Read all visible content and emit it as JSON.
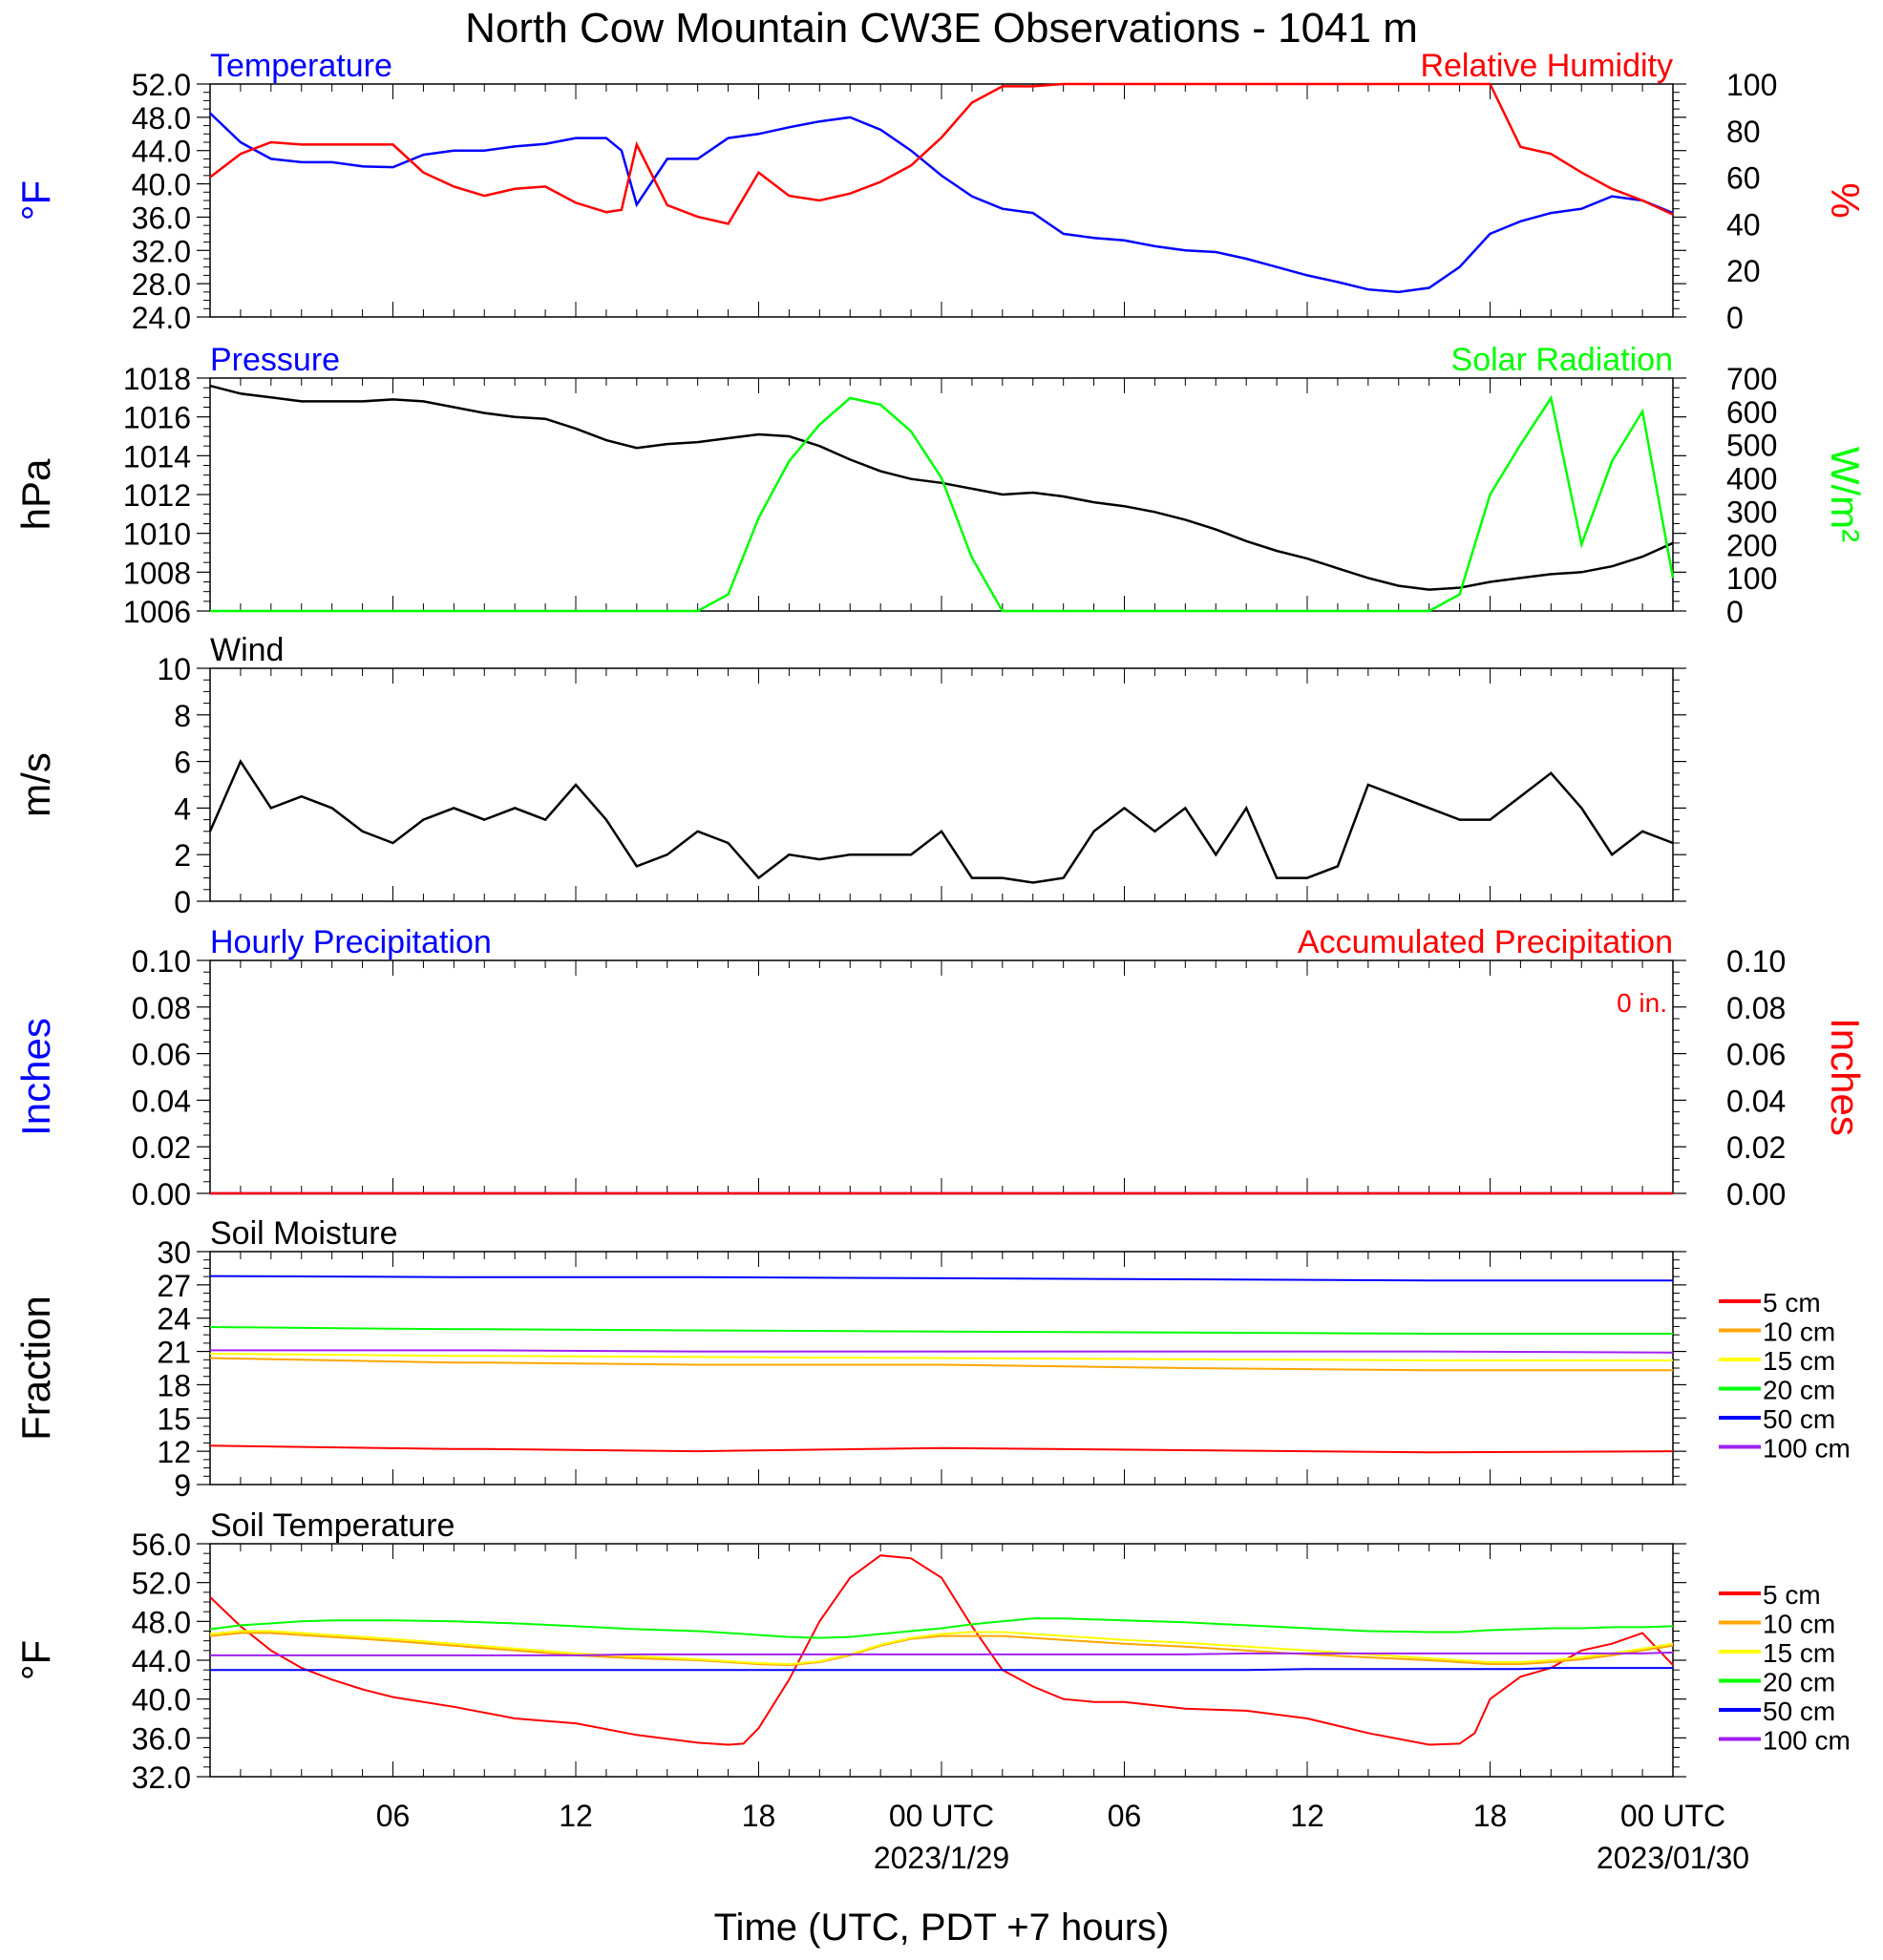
{
  "title": "North Cow Mountain CW3E Observations - 1041 m",
  "xlabel": "Time (UTC, PDT +7 hours)",
  "x_ticks": [
    "06",
    "12",
    "18",
    "00 UTC",
    "06",
    "12",
    "18",
    "00 UTC"
  ],
  "x_dates": [
    "2023/1/29",
    "2023/01/30"
  ],
  "chart_data": [
    {
      "type": "line",
      "title_left": "Temperature",
      "title_right": "Relative Humidity",
      "ylabel_left": "°F",
      "ylabel_right": "%",
      "ylim_left": [
        24,
        52
      ],
      "ylim_right": [
        0,
        100
      ],
      "yticks_left": [
        "52.0",
        "48.0",
        "44.0",
        "40.0",
        "36.0",
        "32.0",
        "28.0",
        "24.0"
      ],
      "yticks_right": [
        "100",
        "80",
        "60",
        "40",
        "20",
        "0"
      ],
      "x_hours": [
        0,
        1,
        2,
        3,
        4,
        5,
        6,
        7,
        8,
        9,
        10,
        11,
        12,
        13,
        13.5,
        14,
        15,
        16,
        17,
        18,
        19,
        20,
        21,
        22,
        23,
        24,
        25,
        26,
        27,
        28,
        29,
        30,
        31,
        32,
        33,
        34,
        35,
        36,
        37,
        38,
        39,
        40,
        41,
        42,
        43,
        44,
        45,
        46,
        47,
        48
      ],
      "series": [
        {
          "name": "Temperature",
          "color": "#0000ff",
          "axis": "left",
          "values": [
            48.5,
            45,
            43,
            42.6,
            42.6,
            42.1,
            42,
            43.5,
            44,
            44,
            44.5,
            44.8,
            45.5,
            45.5,
            44,
            37.5,
            43,
            43,
            45.5,
            46,
            46.8,
            47.5,
            48,
            46.5,
            44,
            41,
            38.5,
            37,
            36.5,
            34,
            33.5,
            33.2,
            32.5,
            32,
            31.8,
            31,
            30,
            29,
            28.2,
            27.3,
            27,
            27.5,
            30,
            34,
            35.5,
            36.5,
            37,
            38.5,
            38,
            36.5
          ]
        },
        {
          "name": "Relative Humidity",
          "color": "#ff0000",
          "axis": "right",
          "values": [
            60,
            70,
            75,
            74,
            74,
            74,
            74,
            62,
            56,
            52,
            55,
            56,
            49,
            45,
            46,
            74,
            48,
            43,
            40,
            62,
            52,
            50,
            53,
            58,
            65,
            77,
            92,
            99,
            99,
            100,
            100,
            100,
            100,
            100,
            100,
            100,
            100,
            100,
            100,
            100,
            100,
            100,
            100,
            100,
            73,
            70,
            62,
            55,
            50,
            44
          ]
        }
      ]
    },
    {
      "type": "line",
      "title_left": "Pressure",
      "title_right": "Solar Radiation",
      "ylabel_left": "hPa",
      "ylabel_right": "W/m²",
      "ylim_left": [
        1006,
        1018
      ],
      "ylim_right": [
        0,
        700
      ],
      "yticks_left": [
        "1018",
        "1016",
        "1014",
        "1012",
        "1010",
        "1008",
        "1006"
      ],
      "yticks_right": [
        "700",
        "600",
        "500",
        "400",
        "300",
        "200",
        "100",
        "0"
      ],
      "x_hours": [
        0,
        1,
        2,
        3,
        4,
        5,
        6,
        7,
        8,
        9,
        10,
        11,
        12,
        13,
        14,
        15,
        16,
        17,
        18,
        19,
        20,
        21,
        22,
        23,
        24,
        25,
        26,
        27,
        28,
        29,
        30,
        31,
        32,
        33,
        34,
        35,
        36,
        37,
        38,
        39,
        40,
        41,
        42,
        43,
        44,
        45,
        46,
        47,
        48
      ],
      "series": [
        {
          "name": "Pressure",
          "color": "#000000",
          "axis": "left",
          "values": [
            1017.6,
            1017.2,
            1017,
            1016.8,
            1016.8,
            1016.8,
            1016.9,
            1016.8,
            1016.5,
            1016.2,
            1016,
            1015.9,
            1015.4,
            1014.8,
            1014.4,
            1014.6,
            1014.7,
            1014.9,
            1015.1,
            1015,
            1014.5,
            1013.8,
            1013.2,
            1012.8,
            1012.6,
            1012.3,
            1012,
            1012.1,
            1011.9,
            1011.6,
            1011.4,
            1011.1,
            1010.7,
            1010.2,
            1009.6,
            1009.1,
            1008.7,
            1008.2,
            1007.7,
            1007.3,
            1007.1,
            1007.2,
            1007.5,
            1007.7,
            1007.9,
            1008,
            1008.3,
            1008.8,
            1009.5
          ]
        },
        {
          "name": "Solar Radiation",
          "color": "#00ff00",
          "axis": "right",
          "values": [
            0,
            0,
            0,
            0,
            0,
            0,
            0,
            0,
            0,
            0,
            0,
            0,
            0,
            0,
            0,
            0,
            0,
            50,
            280,
            450,
            560,
            640,
            620,
            540,
            400,
            160,
            0,
            0,
            0,
            0,
            0,
            0,
            0,
            0,
            0,
            0,
            0,
            0,
            0,
            0,
            0,
            50,
            350,
            500,
            640,
            200,
            450,
            600,
            100
          ]
        }
      ]
    },
    {
      "type": "line",
      "title_left": "Wind",
      "ylabel_left": "m/s",
      "ylim_left": [
        0,
        10
      ],
      "yticks_left": [
        "10",
        "8",
        "6",
        "4",
        "2",
        "0"
      ],
      "x_hours": [
        0,
        1,
        2,
        3,
        4,
        5,
        6,
        7,
        8,
        9,
        10,
        11,
        12,
        13,
        14,
        15,
        16,
        17,
        18,
        19,
        20,
        21,
        22,
        23,
        24,
        25,
        26,
        27,
        28,
        29,
        30,
        31,
        32,
        33,
        34,
        35,
        36,
        37,
        38,
        39,
        40,
        41,
        42,
        43,
        44,
        45,
        46,
        47,
        48
      ],
      "series": [
        {
          "name": "Wind",
          "color": "#000000",
          "axis": "left",
          "values": [
            3,
            6,
            4,
            4.5,
            4,
            3,
            2.5,
            3.5,
            4,
            3.5,
            4,
            3.5,
            5,
            3.5,
            1.5,
            2,
            3,
            2.5,
            1,
            2,
            1.8,
            2,
            2,
            2,
            3,
            1,
            1,
            0.8,
            1,
            3,
            4,
            3,
            4,
            2,
            4,
            1,
            1,
            1.5,
            5,
            4.5,
            4,
            3.5,
            3.5,
            4.5,
            5.5,
            4,
            2,
            3,
            2.5
          ]
        }
      ]
    },
    {
      "type": "line",
      "title_left": "Hourly Precipitation",
      "title_right": "Accumulated Precipitation",
      "annotation": "0 in.",
      "ylabel_left": "Inches",
      "ylabel_right": "Inches",
      "ylim_left": [
        0,
        0.1
      ],
      "ylim_right": [
        0,
        0.1
      ],
      "yticks_left": [
        "0.10",
        "0.08",
        "0.06",
        "0.04",
        "0.02",
        "0.00"
      ],
      "yticks_right": [
        "0.10",
        "0.08",
        "0.06",
        "0.04",
        "0.02",
        "0.00"
      ],
      "x_hours": [
        0,
        48
      ],
      "series": [
        {
          "name": "Hourly Precipitation",
          "color": "#0000ff",
          "axis": "left",
          "values": [
            0,
            0
          ]
        },
        {
          "name": "Accumulated Precipitation",
          "color": "#ff0000",
          "axis": "right",
          "values": [
            0,
            0
          ]
        }
      ]
    },
    {
      "type": "line",
      "title_left": "Soil Moisture",
      "ylabel_left": "Fraction",
      "ylim_left": [
        9,
        30
      ],
      "yticks_left": [
        "30",
        "27",
        "24",
        "21",
        "18",
        "15",
        "12",
        "9"
      ],
      "x_hours": [
        0,
        8,
        9,
        16,
        24,
        32,
        40,
        48
      ],
      "series": [
        {
          "name": "5 cm",
          "color": "#ff0000",
          "values": [
            12.5,
            12.2,
            12.2,
            12,
            12.3,
            12.1,
            11.9,
            12
          ]
        },
        {
          "name": "10 cm",
          "color": "#ffa500",
          "values": [
            20.4,
            20,
            20,
            19.8,
            19.8,
            19.5,
            19.3,
            19.3
          ]
        },
        {
          "name": "15 cm",
          "color": "#ffff00",
          "values": [
            20.8,
            20.6,
            20.6,
            20.5,
            20.4,
            20.3,
            20.2,
            20.2
          ]
        },
        {
          "name": "20 cm",
          "color": "#00ff00",
          "values": [
            23.2,
            23,
            23,
            22.9,
            22.8,
            22.7,
            22.6,
            22.6
          ]
        },
        {
          "name": "50 cm",
          "color": "#0000ff",
          "values": [
            27.8,
            27.7,
            27.7,
            27.7,
            27.6,
            27.5,
            27.4,
            27.4
          ]
        },
        {
          "name": "100 cm",
          "color": "#a020f0",
          "values": [
            21.1,
            21.1,
            21.1,
            21,
            21,
            21,
            21,
            20.9
          ]
        }
      ]
    },
    {
      "type": "line",
      "title_left": "Soil Temperature",
      "ylabel_left": "°F",
      "ylim_left": [
        32,
        56
      ],
      "yticks_left": [
        "56.0",
        "52.0",
        "48.0",
        "44.0",
        "40.0",
        "36.0",
        "32.0"
      ],
      "x_hours": [
        0,
        1,
        2,
        3,
        4,
        5,
        6,
        8,
        10,
        12,
        14,
        16,
        17,
        17.5,
        18,
        19,
        20,
        21,
        22,
        23,
        24,
        25,
        26,
        27,
        28,
        29,
        30,
        32,
        34,
        36,
        38,
        40,
        41,
        41.5,
        42,
        43,
        44,
        45,
        46,
        47,
        48
      ],
      "series": [
        {
          "name": "5 cm",
          "color": "#ff0000",
          "values": [
            50.5,
            47.5,
            45,
            43.2,
            42,
            41,
            40.2,
            39.2,
            38,
            37.5,
            36.3,
            35.5,
            35.3,
            35.4,
            37,
            42,
            48,
            52.5,
            54.8,
            54.5,
            52.5,
            47.5,
            43,
            41.3,
            40,
            39.7,
            39.7,
            39,
            38.8,
            38,
            36.5,
            35.3,
            35.4,
            36.5,
            40,
            42.3,
            43.2,
            45,
            45.7,
            46.8,
            43.5
          ]
        },
        {
          "name": "10 cm",
          "color": "#ffa500",
          "values": [
            46.5,
            46.8,
            46.8,
            46.6,
            46.4,
            46.2,
            46,
            45.5,
            45,
            44.5,
            44.2,
            44,
            43.8,
            43.7,
            43.6,
            43.5,
            43.8,
            44.5,
            45.5,
            46.2,
            46.5,
            46.5,
            46.5,
            46.3,
            46.1,
            45.9,
            45.7,
            45.4,
            45,
            44.6,
            44.3,
            44,
            43.8,
            43.7,
            43.6,
            43.6,
            43.8,
            44.1,
            44.5,
            45,
            45.5
          ]
        },
        {
          "name": "15 cm",
          "color": "#ffff00",
          "values": [
            46.7,
            47,
            47,
            46.8,
            46.6,
            46.4,
            46.2,
            45.7,
            45.2,
            44.7,
            44.4,
            44.1,
            43.9,
            43.8,
            43.7,
            43.6,
            43.9,
            44.6,
            45.6,
            46.3,
            46.7,
            46.9,
            46.9,
            46.7,
            46.5,
            46.3,
            46.1,
            45.8,
            45.4,
            45,
            44.6,
            44.2,
            44,
            43.9,
            43.8,
            43.8,
            44,
            44.3,
            44.7,
            45.2,
            45.7
          ]
        },
        {
          "name": "20 cm",
          "color": "#00ff00",
          "values": [
            47.2,
            47.6,
            47.8,
            48,
            48.1,
            48.1,
            48.1,
            48,
            47.8,
            47.5,
            47.2,
            47,
            46.8,
            46.7,
            46.6,
            46.4,
            46.3,
            46.4,
            46.7,
            47,
            47.3,
            47.7,
            48,
            48.3,
            48.3,
            48.2,
            48.1,
            47.9,
            47.6,
            47.3,
            47,
            46.9,
            46.9,
            47,
            47.1,
            47.2,
            47.3,
            47.3,
            47.4,
            47.4,
            47.5
          ]
        },
        {
          "name": "50 cm",
          "color": "#0000ff",
          "values": [
            43,
            43,
            43,
            43,
            43,
            43,
            43,
            43,
            43,
            43,
            43,
            43,
            43,
            43,
            43,
            43,
            43,
            43,
            43,
            43,
            43,
            43,
            43,
            43,
            43,
            43,
            43,
            43,
            43,
            43.1,
            43.1,
            43.1,
            43.1,
            43.1,
            43.1,
            43.1,
            43.2,
            43.2,
            43.2,
            43.2,
            43.2
          ]
        },
        {
          "name": "100 cm",
          "color": "#a020f0",
          "values": [
            44.5,
            44.5,
            44.5,
            44.5,
            44.5,
            44.5,
            44.5,
            44.5,
            44.5,
            44.5,
            44.6,
            44.6,
            44.6,
            44.6,
            44.6,
            44.6,
            44.6,
            44.6,
            44.6,
            44.6,
            44.6,
            44.6,
            44.6,
            44.6,
            44.6,
            44.6,
            44.6,
            44.6,
            44.7,
            44.7,
            44.7,
            44.7,
            44.7,
            44.7,
            44.7,
            44.7,
            44.7,
            44.7,
            44.7,
            44.7,
            44.8
          ]
        }
      ]
    }
  ],
  "soil_legend": [
    {
      "label": "5 cm",
      "color": "#ff0000"
    },
    {
      "label": "10 cm",
      "color": "#ffa500"
    },
    {
      "label": "15 cm",
      "color": "#ffff00"
    },
    {
      "label": "20 cm",
      "color": "#00ff00"
    },
    {
      "label": "50 cm",
      "color": "#0000ff"
    },
    {
      "label": "100 cm",
      "color": "#a020f0"
    }
  ],
  "colors": {
    "left_title": "#0000ff",
    "right_title": "#ff0000",
    "green": "#00ff00"
  }
}
